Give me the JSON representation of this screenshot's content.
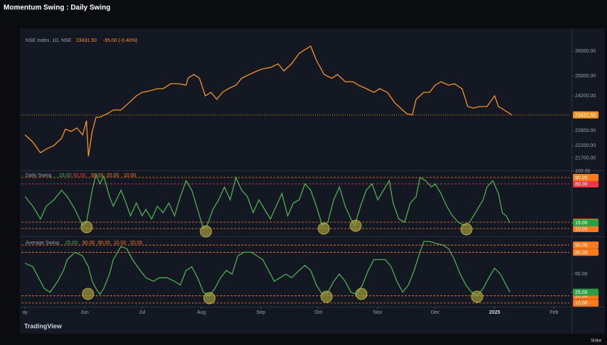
{
  "title": "Momentum Swing : Daily Swing",
  "footer": {
    "brand": "TradingView",
    "corner": "Strike"
  },
  "chart_data": [
    {
      "type": "line",
      "legend_title": "NSE Index, 1D, NSE",
      "color": "#f7941d",
      "last_value": {
        "value": 23431.5,
        "label": "23431.50"
      },
      "change_label": "-95.00 (-0.40%)",
      "xlim": [
        -2,
        284
      ],
      "ylim": [
        21200,
        26630
      ],
      "yticks": [
        {
          "value": 26000,
          "label": "26000.00"
        },
        {
          "value": 25000,
          "label": "25000.00"
        },
        {
          "value": 24200,
          "label": "24200.00"
        },
        {
          "value": 22800,
          "label": "22800.00"
        },
        {
          "value": 22200,
          "label": "22200.00"
        },
        {
          "value": 21700,
          "label": "21700.00"
        }
      ],
      "x": [
        0,
        4,
        8,
        11,
        15,
        19,
        21,
        24,
        27,
        30,
        32,
        33,
        35,
        37,
        39,
        43,
        46,
        50,
        54,
        58,
        61,
        65,
        69,
        72,
        76,
        80,
        84,
        85,
        88,
        91,
        94,
        97,
        100,
        103,
        106,
        110,
        113,
        117,
        121,
        124,
        128,
        132,
        135,
        139,
        143,
        146,
        149,
        152,
        156,
        160,
        163,
        167,
        171,
        174,
        178,
        182,
        185,
        189,
        193,
        197,
        199,
        202,
        204,
        208,
        211,
        214,
        217,
        221,
        224,
        228,
        231,
        234,
        237,
        241,
        245,
        247,
        250,
        254
      ],
      "values": [
        22630,
        22340,
        21910,
        22060,
        22200,
        22490,
        22860,
        22770,
        22910,
        22630,
        23200,
        21770,
        22770,
        23340,
        23340,
        23490,
        23630,
        23630,
        23910,
        24200,
        24340,
        24400,
        24490,
        24490,
        24690,
        24690,
        24630,
        24910,
        25060,
        24910,
        24200,
        24340,
        24060,
        24340,
        24490,
        24630,
        24910,
        25060,
        25200,
        25290,
        25340,
        25490,
        25200,
        25490,
        25910,
        26060,
        26200,
        25630,
        25060,
        24910,
        25060,
        24770,
        24770,
        24630,
        24490,
        24340,
        24490,
        24340,
        23910,
        23630,
        23490,
        23430,
        24060,
        24340,
        24340,
        24630,
        24770,
        24630,
        24690,
        24490,
        23770,
        23710,
        23770,
        23770,
        24200,
        23770,
        23630,
        23431.5
      ]
    },
    {
      "type": "line",
      "title": "Daily Swing",
      "color": "#4caf50",
      "last_value": {
        "value": 19,
        "label": "19.00"
      },
      "levels": [
        {
          "value": 80,
          "label": "80.00",
          "color": "#f23645"
        },
        {
          "value": 90,
          "label": "90.00",
          "color": "#ff7a1a"
        },
        {
          "value": 20,
          "label": "20.00",
          "color": "#ff7a1a"
        },
        {
          "value": 10,
          "label": "10.00",
          "color": "#ff7a1a"
        }
      ],
      "xlim": [
        -2,
        284
      ],
      "ylim": [
        0,
        100
      ],
      "yticks": [
        {
          "value": 100,
          "label": "100.00"
        }
      ],
      "x": [
        0,
        4,
        8,
        11,
        15,
        19,
        22,
        26,
        30,
        32,
        35,
        37,
        39,
        41,
        44,
        46,
        50,
        52,
        55,
        58,
        61,
        63,
        66,
        69,
        72,
        75,
        78,
        81,
        84,
        87,
        90,
        93,
        95,
        98,
        101,
        104,
        107,
        110,
        113,
        116,
        119,
        122,
        125,
        128,
        131,
        134,
        137,
        140,
        143,
        146,
        149,
        152,
        155,
        158,
        161,
        164,
        167,
        170,
        172,
        175,
        178,
        181,
        184,
        187,
        190,
        192,
        195,
        198,
        201,
        204,
        206,
        209,
        212,
        214,
        217,
        220,
        223,
        226,
        229,
        232,
        235,
        239,
        241,
        244,
        247,
        249,
        251,
        253
      ],
      "values": [
        60,
        45,
        25,
        45,
        55,
        70,
        60,
        40,
        15,
        20,
        70,
        95,
        80,
        92,
        60,
        45,
        70,
        55,
        30,
        50,
        30,
        40,
        25,
        45,
        35,
        50,
        30,
        60,
        85,
        70,
        40,
        10,
        15,
        40,
        55,
        75,
        55,
        90,
        70,
        60,
        35,
        55,
        40,
        25,
        45,
        65,
        30,
        50,
        55,
        80,
        70,
        45,
        15,
        20,
        55,
        75,
        45,
        25,
        15,
        45,
        70,
        80,
        55,
        70,
        85,
        50,
        25,
        20,
        50,
        60,
        90,
        85,
        75,
        80,
        65,
        45,
        30,
        20,
        15,
        20,
        35,
        55,
        75,
        85,
        65,
        35,
        30,
        19
      ]
    },
    {
      "type": "line",
      "title": "Average Swing",
      "color": "#4caf50",
      "last_value": {
        "value": 25,
        "label": "25.00"
      },
      "levels": [
        {
          "value": 90,
          "label": "90.00",
          "color": "#ff7a1a"
        },
        {
          "value": 80,
          "label": "80.00",
          "color": "#ff7a1a"
        },
        {
          "value": 10,
          "label": "10.00",
          "color": "#ff7a1a"
        },
        {
          "value": 20,
          "label": "20.00",
          "color": "#ff7a1a"
        }
      ],
      "xlim": [
        -2,
        284
      ],
      "ylim": [
        5,
        100
      ],
      "yticks": [
        {
          "value": 50,
          "label": "50.00"
        }
      ],
      "xticks": [
        {
          "value": 0,
          "label": "ay"
        },
        {
          "value": 31,
          "label": "Jun"
        },
        {
          "value": 61,
          "label": "Jul"
        },
        {
          "value": 92,
          "label": "Aug"
        },
        {
          "value": 123,
          "label": "Sep"
        },
        {
          "value": 153,
          "label": "Oct"
        },
        {
          "value": 184,
          "label": "Nov"
        },
        {
          "value": 214,
          "label": "Dec"
        },
        {
          "value": 245,
          "label": "2025"
        },
        {
          "value": 276,
          "label": "Feb"
        }
      ],
      "x": [
        0,
        4,
        8,
        10,
        13,
        17,
        20,
        22,
        26,
        30,
        33,
        35,
        37,
        39,
        41,
        44,
        46,
        50,
        53,
        56,
        60,
        63,
        67,
        70,
        74,
        78,
        81,
        84,
        87,
        90,
        93,
        96,
        99,
        102,
        105,
        108,
        111,
        114,
        118,
        121,
        124,
        127,
        130,
        133,
        136,
        139,
        143,
        146,
        149,
        152,
        155,
        158,
        161,
        164,
        167,
        170,
        173,
        176,
        179,
        182,
        185,
        188,
        191,
        194,
        197,
        200,
        203,
        206,
        208,
        211,
        215,
        218,
        221,
        224,
        227,
        230,
        233,
        236,
        239,
        242,
        245,
        248,
        251,
        253
      ],
      "values": [
        65,
        60,
        40,
        30,
        25,
        40,
        55,
        70,
        80,
        75,
        60,
        40,
        30,
        22,
        30,
        50,
        70,
        88,
        85,
        70,
        55,
        45,
        40,
        45,
        45,
        40,
        35,
        55,
        60,
        45,
        25,
        20,
        30,
        45,
        55,
        50,
        75,
        80,
        80,
        75,
        70,
        55,
        40,
        45,
        50,
        45,
        55,
        62,
        55,
        35,
        22,
        25,
        40,
        50,
        40,
        25,
        22,
        35,
        55,
        70,
        70,
        70,
        60,
        40,
        25,
        35,
        55,
        80,
        95,
        95,
        92,
        90,
        85,
        70,
        50,
        35,
        25,
        20,
        30,
        45,
        58,
        50,
        35,
        25
      ]
    }
  ]
}
